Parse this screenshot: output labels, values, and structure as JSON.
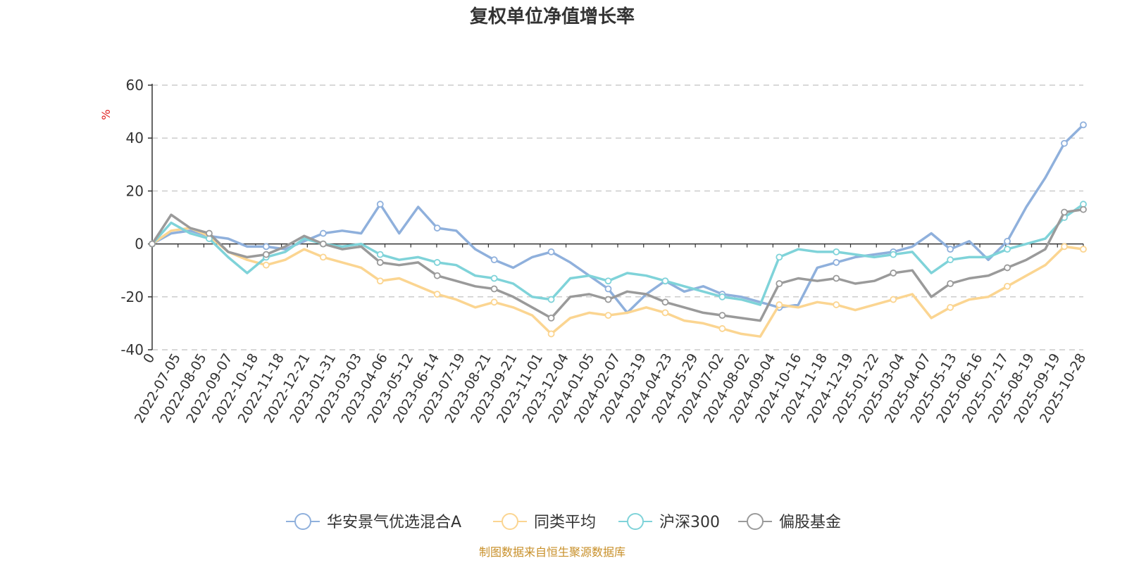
{
  "chart_data": {
    "type": "line",
    "title": "复权单位净值增长率",
    "ylabel": "%",
    "ylim": [
      -40,
      60
    ],
    "yticks": [
      -40,
      -20,
      0,
      20,
      40,
      60
    ],
    "grid": true,
    "legend_position": "bottom",
    "source": "制图数据来自恒生聚源数据库",
    "x_tick_labels": [
      "0",
      "2022-07-05",
      "2022-08-05",
      "2022-09-07",
      "2022-10-18",
      "2022-11-18",
      "2022-12-21",
      "2023-01-31",
      "2023-03-03",
      "2023-04-06",
      "2023-05-12",
      "2023-06-14",
      "2023-07-19",
      "2023-08-21",
      "2023-09-21",
      "2023-11-01",
      "2023-12-04",
      "2024-01-05",
      "2024-02-07",
      "2024-03-19",
      "2024-04-23",
      "2024-05-29",
      "2024-07-02",
      "2024-08-02",
      "2024-09-04",
      "2024-10-16",
      "2024-11-18",
      "2024-12-19",
      "2025-01-22",
      "2025-03-04",
      "2025-04-07",
      "2025-05-13",
      "2025-06-16",
      "2025-07-17",
      "2025-08-19",
      "2025-09-19",
      "2025-10-28"
    ],
    "series": [
      {
        "name": "华安景气优选混合A",
        "color": "#8fb0dc",
        "values": [
          0,
          4,
          5,
          3,
          2,
          -1,
          -1,
          -2,
          1,
          4,
          5,
          4,
          15,
          4,
          14,
          6,
          5,
          -2,
          -6,
          -9,
          -5,
          -3,
          -7,
          -12,
          -17,
          -26,
          -19,
          -14,
          -18,
          -16,
          -19,
          -20,
          -22,
          -24,
          -23,
          -9,
          -7,
          -5,
          -4,
          -3,
          -1,
          4,
          -2,
          1,
          -6,
          1,
          14,
          25,
          38,
          45
        ]
      },
      {
        "name": "同类平均",
        "color": "#fbd591",
        "values": [
          0,
          5,
          6,
          3,
          -3,
          -6,
          -8,
          -6,
          -2,
          -5,
          -7,
          -9,
          -14,
          -13,
          -16,
          -19,
          -21,
          -24,
          -22,
          -24,
          -27,
          -34,
          -28,
          -26,
          -27,
          -26,
          -24,
          -26,
          -29,
          -30,
          -32,
          -34,
          -35,
          -23,
          -24,
          -22,
          -23,
          -25,
          -23,
          -21,
          -19,
          -28,
          -24,
          -21,
          -20,
          -16,
          -12,
          -8,
          -1,
          -2
        ]
      },
      {
        "name": "沪深300",
        "color": "#7fd3d9",
        "values": [
          0,
          8,
          4,
          2,
          -5,
          -11,
          -5,
          -3,
          2,
          0,
          -1,
          0,
          -4,
          -6,
          -5,
          -7,
          -8,
          -12,
          -13,
          -15,
          -20,
          -21,
          -13,
          -12,
          -14,
          -11,
          -12,
          -14,
          -16,
          -18,
          -20,
          -21,
          -23,
          -5,
          -2,
          -3,
          -3,
          -4,
          -5,
          -4,
          -3,
          -11,
          -6,
          -5,
          -5,
          -2,
          0,
          2,
          10,
          15
        ]
      },
      {
        "name": "偏股基金",
        "color": "#9a9a9a",
        "values": [
          0,
          11,
          6,
          4,
          -3,
          -5,
          -4,
          -1,
          3,
          0,
          -2,
          -1,
          -7,
          -8,
          -7,
          -12,
          -14,
          -16,
          -17,
          -20,
          -24,
          -28,
          -20,
          -19,
          -21,
          -18,
          -19,
          -22,
          -24,
          -26,
          -27,
          -28,
          -29,
          -15,
          -13,
          -14,
          -13,
          -15,
          -14,
          -11,
          -10,
          -20,
          -15,
          -13,
          -12,
          -9,
          -6,
          -2,
          12,
          13
        ]
      }
    ]
  }
}
